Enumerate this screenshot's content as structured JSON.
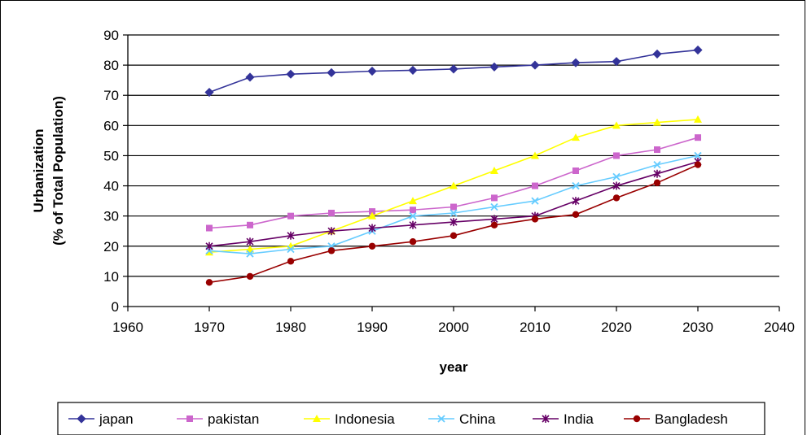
{
  "chart_data": {
    "type": "line",
    "xlabel": "year",
    "ylabel_lines": [
      "Urbanization",
      "(% of Total Population)"
    ],
    "xlim": [
      1960,
      2040
    ],
    "ylim": [
      0,
      90
    ],
    "x_ticks": [
      1960,
      1970,
      1980,
      1990,
      2000,
      2010,
      2020,
      2030,
      2040
    ],
    "y_ticks": [
      0,
      10,
      20,
      30,
      40,
      50,
      60,
      70,
      80,
      90
    ],
    "x_tick_labels": [
      "1960",
      "1970",
      "1980",
      "1990",
      "2000",
      "2010",
      "2020",
      "2030",
      "2040"
    ],
    "y_tick_labels": [
      "0",
      "10",
      "20",
      "30",
      "40",
      "50",
      "60",
      "70",
      "80",
      "90"
    ],
    "grid": "horizontal",
    "legend_position": "bottom",
    "x": [
      1970,
      1975,
      1980,
      1985,
      1990,
      1995,
      2000,
      2005,
      2010,
      2015,
      2020,
      2025,
      2030
    ],
    "series": [
      {
        "name": "japan",
        "color": "#333399",
        "marker": "diamond",
        "values": [
          71,
          76,
          77,
          77.5,
          78,
          78.3,
          78.7,
          79.4,
          80,
          80.8,
          81.2,
          83.7,
          85
        ]
      },
      {
        "name": "pakistan",
        "color": "#CC66CC",
        "marker": "square",
        "values": [
          26,
          27,
          30,
          31,
          31.5,
          32,
          33,
          36,
          40,
          45,
          50,
          52,
          56
        ]
      },
      {
        "name": "Indonesia",
        "color": "#FFFF00",
        "marker": "triangle",
        "values": [
          18,
          19,
          20,
          25,
          30,
          35,
          40,
          45,
          50,
          56,
          60,
          61,
          62
        ]
      },
      {
        "name": "China",
        "color": "#66CCFF",
        "marker": "x",
        "values": [
          18.5,
          17.5,
          19,
          20,
          25,
          30,
          31,
          33,
          35,
          40,
          43,
          47,
          50
        ]
      },
      {
        "name": "India",
        "color": "#660066",
        "marker": "star",
        "values": [
          20,
          21.5,
          23.5,
          25,
          26,
          27,
          28,
          29,
          30,
          35,
          40,
          44,
          48
        ]
      },
      {
        "name": "Bangladesh",
        "color": "#990000",
        "marker": "circle",
        "values": [
          8,
          10,
          15,
          18.5,
          20,
          21.5,
          23.5,
          27,
          29,
          30.5,
          36,
          41,
          47
        ]
      }
    ]
  }
}
